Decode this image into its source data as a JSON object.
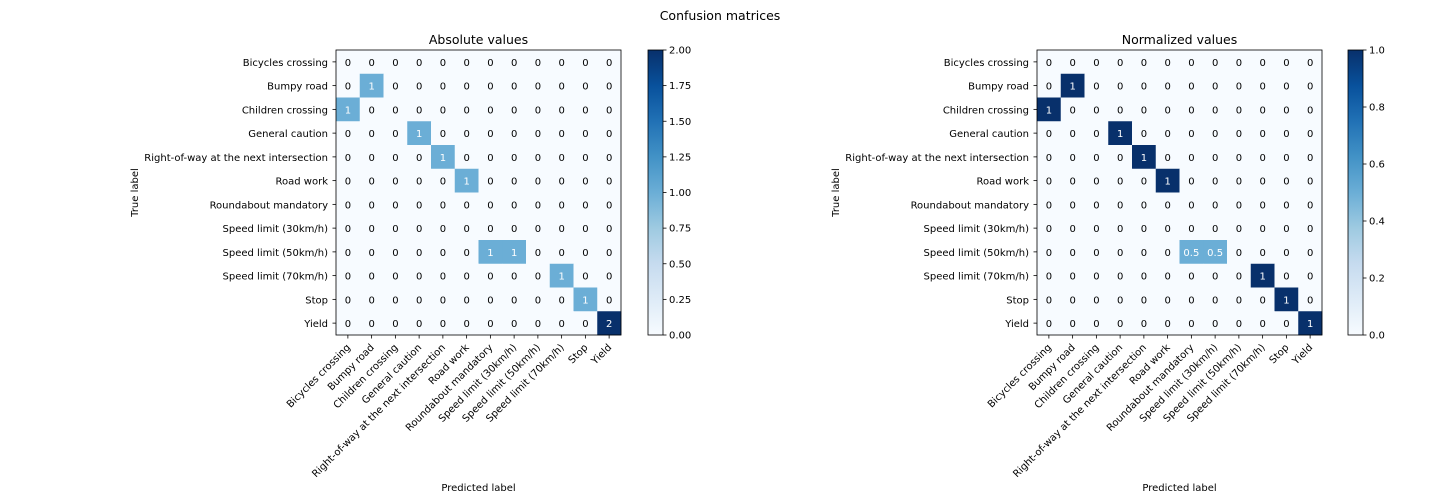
{
  "figure_title": "Confusion matrices",
  "chart_data": [
    {
      "type": "heatmap",
      "title": "Absolute values",
      "xlabel": "Predicted label",
      "ylabel": "True label",
      "labels": [
        "Bicycles crossing",
        "Bumpy road",
        "Children crossing",
        "General caution",
        "Right-of-way at the next intersection",
        "Road work",
        "Roundabout mandatory",
        "Speed limit (30km/h)",
        "Speed limit (50km/h)",
        "Speed limit (70km/h)",
        "Stop",
        "Yield"
      ],
      "matrix": [
        [
          0,
          0,
          0,
          0,
          0,
          0,
          0,
          0,
          0,
          0,
          0,
          0
        ],
        [
          0,
          1,
          0,
          0,
          0,
          0,
          0,
          0,
          0,
          0,
          0,
          0
        ],
        [
          1,
          0,
          0,
          0,
          0,
          0,
          0,
          0,
          0,
          0,
          0,
          0
        ],
        [
          0,
          0,
          0,
          1,
          0,
          0,
          0,
          0,
          0,
          0,
          0,
          0
        ],
        [
          0,
          0,
          0,
          0,
          1,
          0,
          0,
          0,
          0,
          0,
          0,
          0
        ],
        [
          0,
          0,
          0,
          0,
          0,
          1,
          0,
          0,
          0,
          0,
          0,
          0
        ],
        [
          0,
          0,
          0,
          0,
          0,
          0,
          0,
          0,
          0,
          0,
          0,
          0
        ],
        [
          0,
          0,
          0,
          0,
          0,
          0,
          0,
          0,
          0,
          0,
          0,
          0
        ],
        [
          0,
          0,
          0,
          0,
          0,
          0,
          1,
          1,
          0,
          0,
          0,
          0
        ],
        [
          0,
          0,
          0,
          0,
          0,
          0,
          0,
          0,
          0,
          1,
          0,
          0
        ],
        [
          0,
          0,
          0,
          0,
          0,
          0,
          0,
          0,
          0,
          0,
          1,
          0
        ],
        [
          0,
          0,
          0,
          0,
          0,
          0,
          0,
          0,
          0,
          0,
          0,
          2
        ]
      ],
      "colorbar": {
        "range": [
          0,
          2
        ],
        "ticks": [
          "0.00",
          "0.25",
          "0.50",
          "0.75",
          "1.00",
          "1.25",
          "1.50",
          "1.75",
          "2.00"
        ]
      },
      "colormap": "Blues"
    },
    {
      "type": "heatmap",
      "title": "Normalized values",
      "xlabel": "Predicted label",
      "ylabel": "True label",
      "labels": [
        "Bicycles crossing",
        "Bumpy road",
        "Children crossing",
        "General caution",
        "Right-of-way at the next intersection",
        "Road work",
        "Roundabout mandatory",
        "Speed limit (30km/h)",
        "Speed limit (50km/h)",
        "Speed limit (70km/h)",
        "Stop",
        "Yield"
      ],
      "matrix": [
        [
          0,
          0,
          0,
          0,
          0,
          0,
          0,
          0,
          0,
          0,
          0,
          0
        ],
        [
          0,
          1,
          0,
          0,
          0,
          0,
          0,
          0,
          0,
          0,
          0,
          0
        ],
        [
          1,
          0,
          0,
          0,
          0,
          0,
          0,
          0,
          0,
          0,
          0,
          0
        ],
        [
          0,
          0,
          0,
          1,
          0,
          0,
          0,
          0,
          0,
          0,
          0,
          0
        ],
        [
          0,
          0,
          0,
          0,
          1,
          0,
          0,
          0,
          0,
          0,
          0,
          0
        ],
        [
          0,
          0,
          0,
          0,
          0,
          1,
          0,
          0,
          0,
          0,
          0,
          0
        ],
        [
          0,
          0,
          0,
          0,
          0,
          0,
          0,
          0,
          0,
          0,
          0,
          0
        ],
        [
          0,
          0,
          0,
          0,
          0,
          0,
          0,
          0,
          0,
          0,
          0,
          0
        ],
        [
          0,
          0,
          0,
          0,
          0,
          0,
          0.5,
          0.5,
          0,
          0,
          0,
          0
        ],
        [
          0,
          0,
          0,
          0,
          0,
          0,
          0,
          0,
          0,
          1,
          0,
          0
        ],
        [
          0,
          0,
          0,
          0,
          0,
          0,
          0,
          0,
          0,
          0,
          1,
          0
        ],
        [
          0,
          0,
          0,
          0,
          0,
          0,
          0,
          0,
          0,
          0,
          0,
          1
        ]
      ],
      "colorbar": {
        "range": [
          0,
          1
        ],
        "ticks": [
          "0.0",
          "0.2",
          "0.4",
          "0.6",
          "0.8",
          "1.0"
        ]
      },
      "colormap": "Blues"
    }
  ]
}
